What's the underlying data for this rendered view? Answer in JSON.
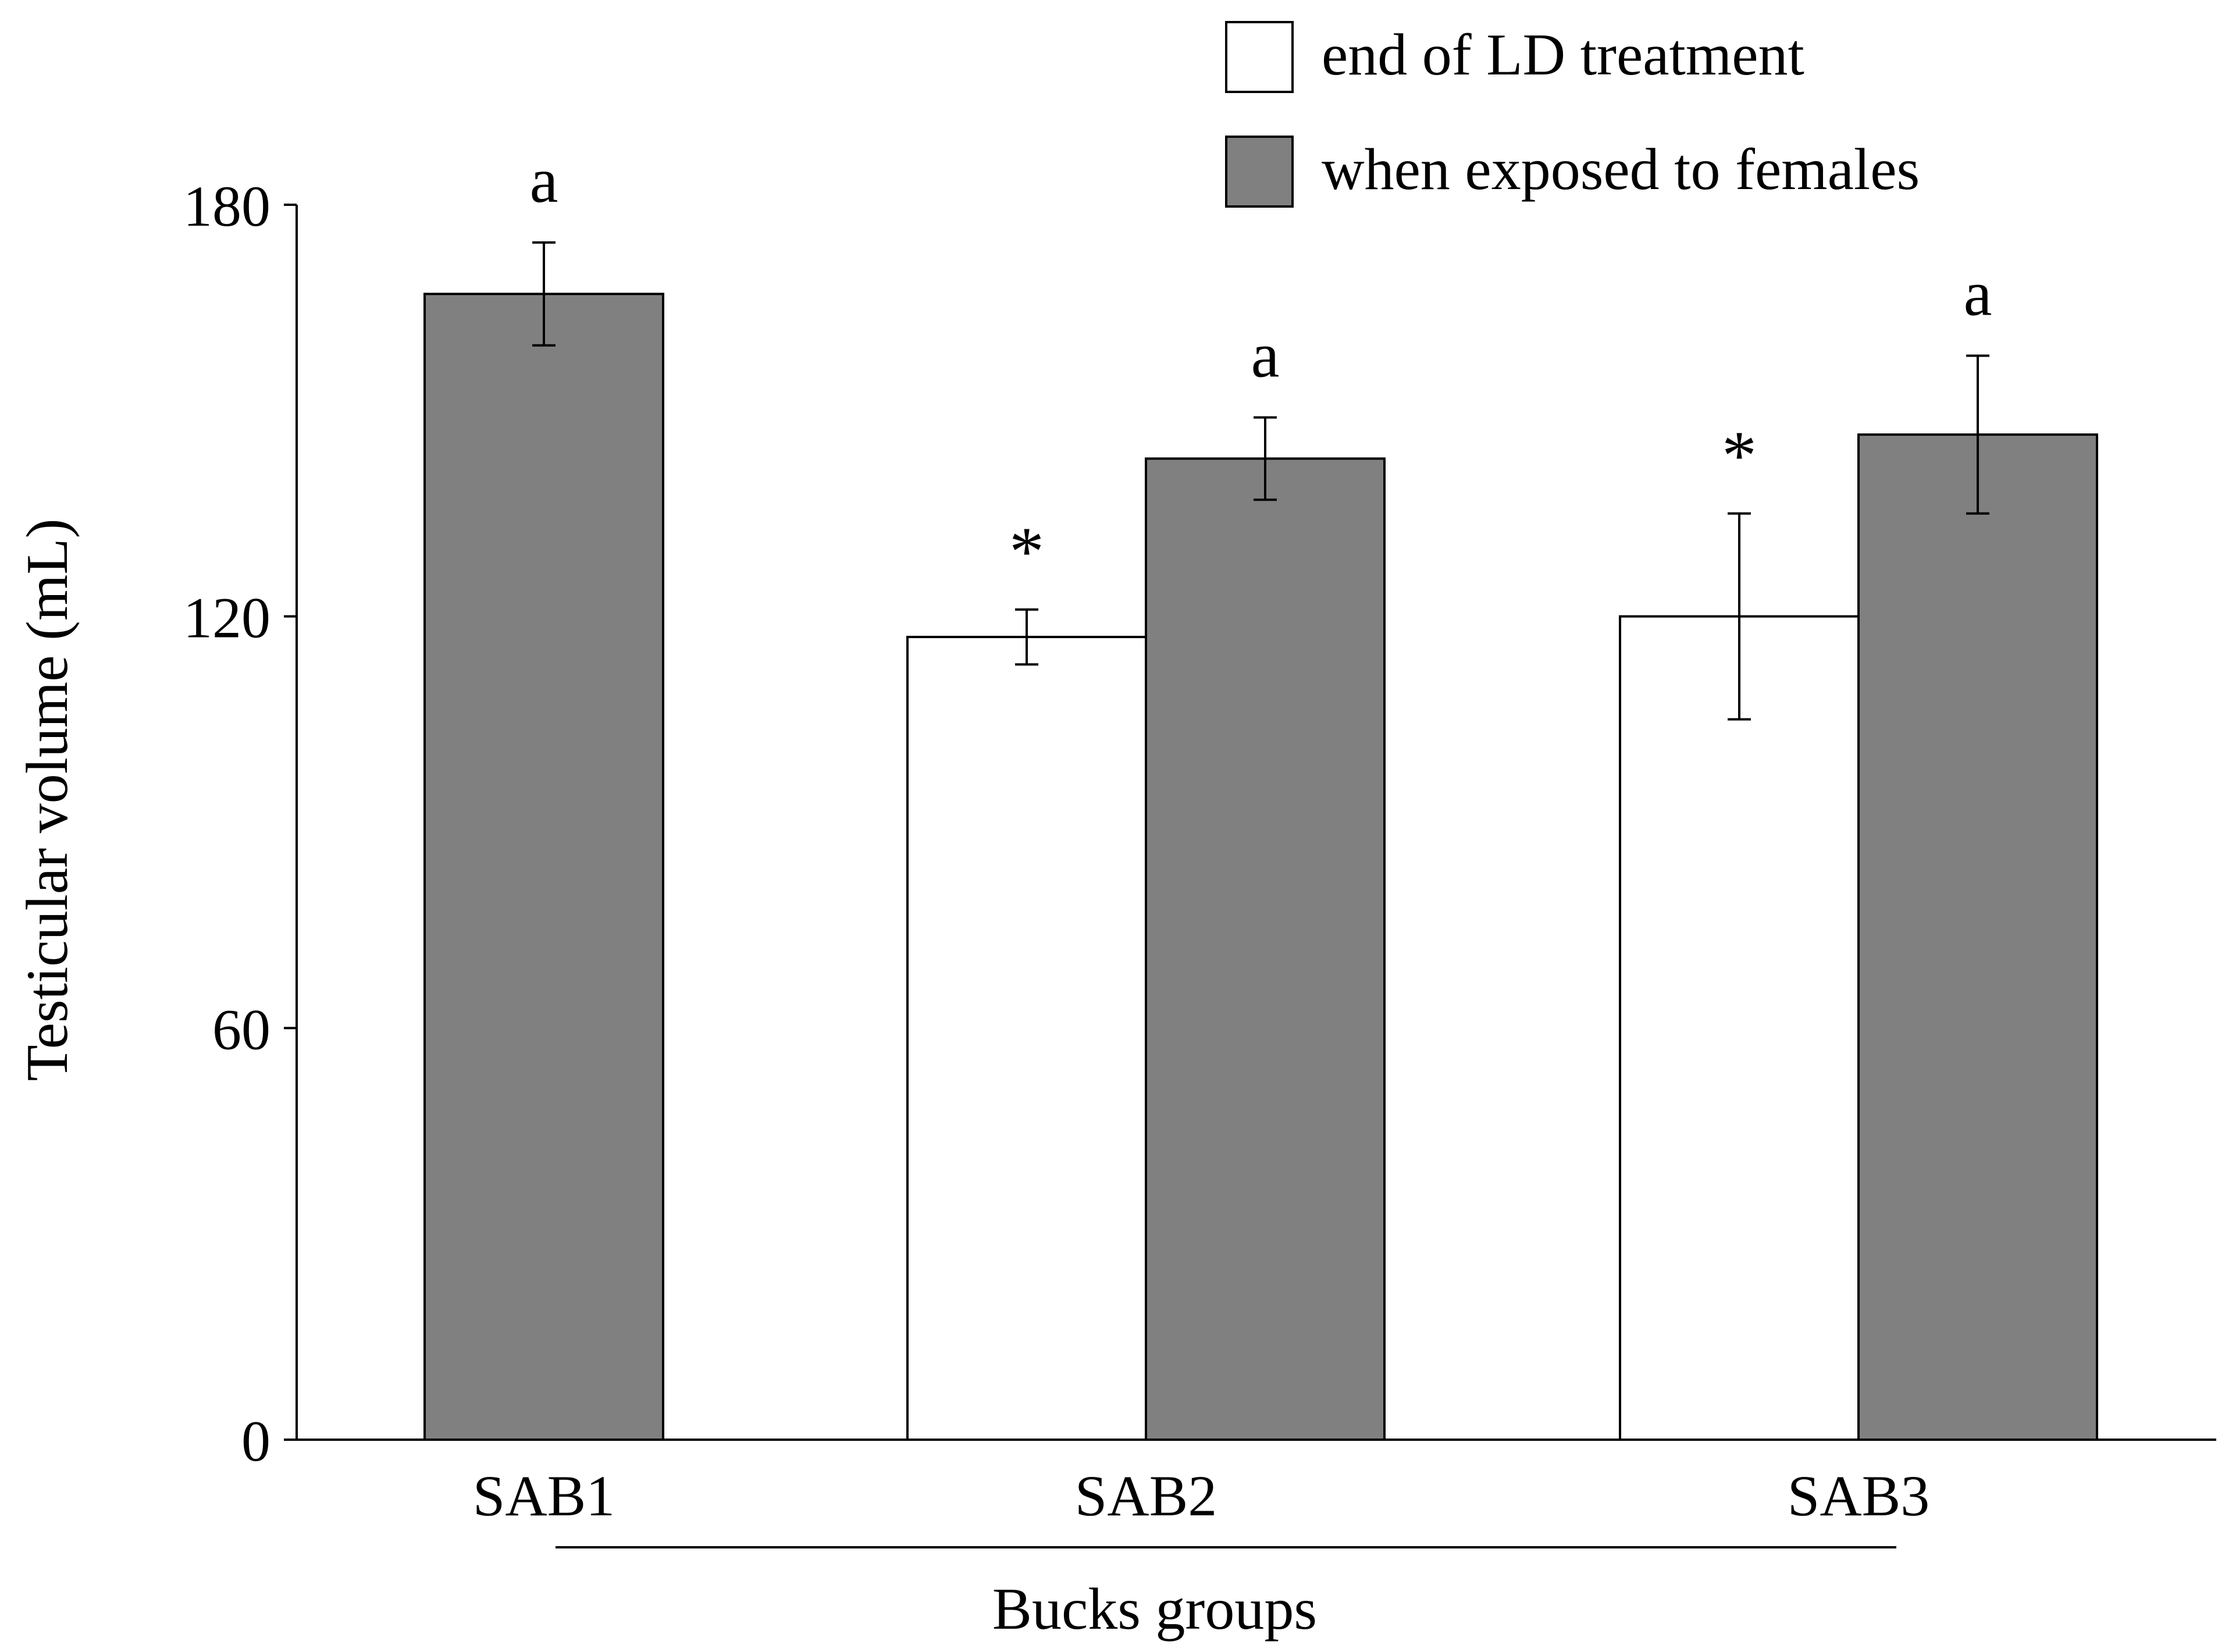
{
  "chart_data": {
    "type": "bar",
    "title": "",
    "xlabel": "Bucks groups",
    "ylabel": "Testicular volume (mL)",
    "ylim": [
      0,
      180
    ],
    "yticks": [
      "0",
      "60",
      "120",
      "180"
    ],
    "ytick_values": [
      0,
      60,
      120,
      180
    ],
    "categories": [
      "SAB1",
      "SAB2",
      "SAB3"
    ],
    "grid": false,
    "legend_position": "top-right",
    "series": [
      {
        "name": "end of LD treatment",
        "color": "#ffffff",
        "values": [
          null,
          117,
          120
        ],
        "errors": [
          null,
          4,
          15
        ],
        "markers": [
          "",
          "*",
          "*"
        ]
      },
      {
        "name": "when exposed to females",
        "color": "#808080",
        "values": [
          167,
          143,
          146.5
        ],
        "errors": [
          7.5,
          6,
          11.5
        ],
        "markers": [
          "a",
          "a",
          "a"
        ]
      }
    ]
  }
}
